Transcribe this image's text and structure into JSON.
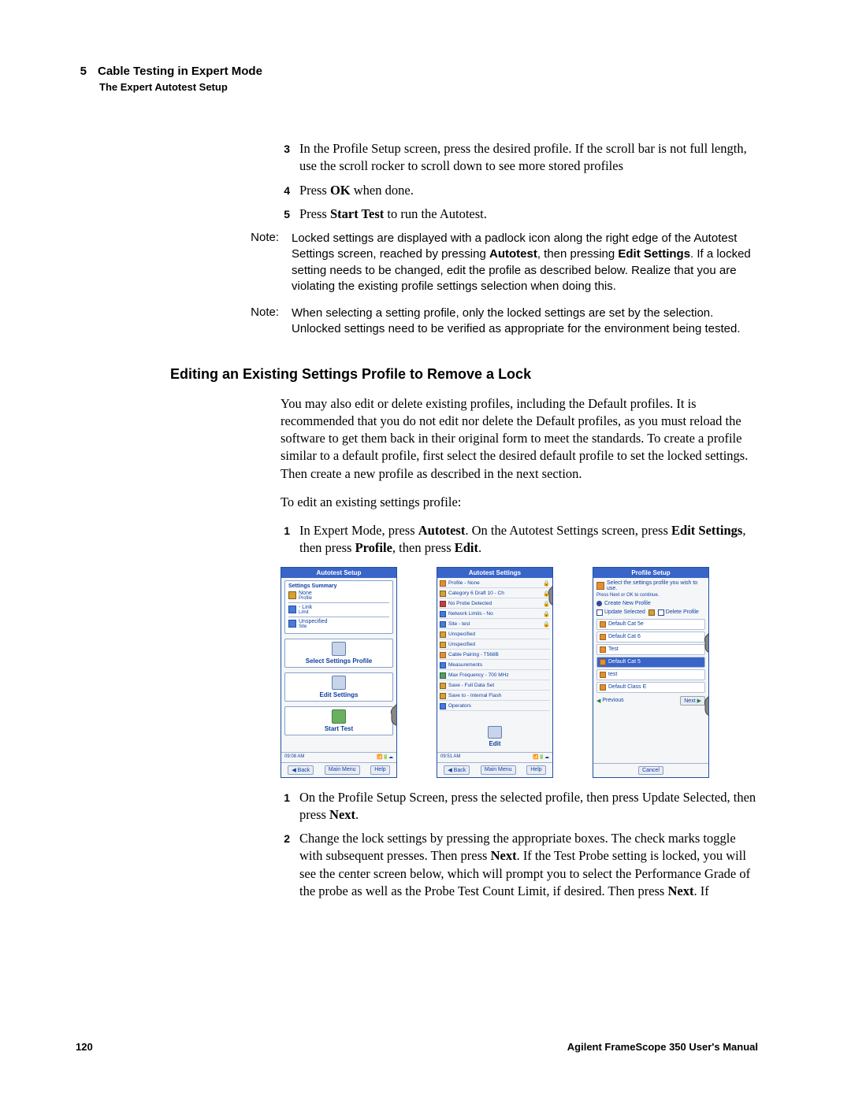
{
  "header": {
    "chapter_number": "5",
    "chapter_title": "Cable Testing in Expert Mode",
    "subsection": "The Expert Autotest Setup"
  },
  "steps_top": {
    "items": [
      {
        "n": "3",
        "text": "In the Profile Setup screen, press the desired profile. If the scroll bar is not full length, use the scroll rocker to scroll down to see more stored profiles"
      },
      {
        "n": "4",
        "text_pre": "Press ",
        "bold": "OK",
        "text_post": " when done."
      },
      {
        "n": "5",
        "text_pre": "Press ",
        "bold": "Start Test",
        "text_post": " to run the Autotest."
      }
    ]
  },
  "notes": [
    {
      "label": "Note:",
      "pre": "Locked settings are displayed with a padlock icon along the right edge of the Autotest Settings screen, reached by pressing ",
      "b1": "Autotest",
      "mid": ", then pressing ",
      "b2": "Edit Settings",
      "post": ". If a locked setting needs to be changed, edit the profile as described below. Realize that you are violating the existing profile settings selection when doing this."
    },
    {
      "label": "Note:",
      "text": "When selecting a setting profile, only the locked settings are set by the selection. Unlocked settings need to be verified as appropriate for the environment being tested."
    }
  ],
  "section_heading": "Editing an Existing Settings Profile to Remove a Lock",
  "intro_para": "You may also edit or delete existing profiles, including the Default profiles. It is recommended that you do not edit nor delete the Default profiles, as you must reload the software to get them back in their original form to meet the standards. To create a profile similar to a default profile, first select the desired default profile to set the locked settings. Then create a new profile as described in the next section.",
  "edit_intro": "To edit an existing settings profile:",
  "step1": {
    "n": "1",
    "pre": "In Expert Mode, press ",
    "b1": "Autotest",
    "mid1": ". On the Autotest Settings screen, press ",
    "b2": "Edit Settings",
    "mid2": ", then press ",
    "b3": "Profile",
    "mid3": ", then press ",
    "b4": "Edit",
    "post": "."
  },
  "screenshots": {
    "shot1": {
      "title": "Autotest Setup",
      "summary_label": "Settings Summary",
      "rows": [
        {
          "label": "None",
          "sub": "Profile"
        },
        {
          "label": "- Link",
          "sub": "Limit"
        },
        {
          "label": "Unspecified",
          "sub": "Site"
        }
      ],
      "btn1": "Select Settings Profile",
      "btn2": "Edit Settings",
      "btn3": "Start Test",
      "time": "09:08 AM",
      "bot": [
        "Back",
        "Main Menu",
        "Help"
      ]
    },
    "shot2": {
      "title": "Autotest Settings",
      "rows": [
        "Profile - None",
        "Category 6 Draft 10 - Ch",
        "No Probe Detected",
        "Network Limits - No",
        "Site - test",
        "Unspecified",
        "Unspecified",
        "Cable Pairing - T568B",
        "Measurements",
        "Max Frequency - 700 MHz",
        "Save - Full Data Set",
        "Save to - Internal Flash",
        "Operators"
      ],
      "editbtn": "Edit",
      "time": "09:51 AM",
      "bot": [
        "Back",
        "Main Menu",
        "Help"
      ]
    },
    "shot3": {
      "title": "Profile Setup",
      "instr": "Select the settings profile you wish to use.",
      "instr2": "Press Next or OK to continue.",
      "create": "Create New Profile",
      "update": "Update Selected",
      "delete": "Delete Profile",
      "items": [
        "Default Cat 5e",
        "Default Cat 6",
        "Test",
        "Default Cat 5",
        "test",
        "Default Class E"
      ],
      "prev": "Previous",
      "next": "Next",
      "cancel": "Cancel"
    }
  },
  "steps_bottom": {
    "items": [
      {
        "n": "1",
        "pre": "On the Profile Setup Screen, press the selected profile, then press Update Selected, then press ",
        "b1": "Next",
        "post": "."
      },
      {
        "n": "2",
        "pre": "Change the lock settings by pressing the appropriate boxes. The check marks toggle with subsequent presses. Then press ",
        "b1": "Next",
        "mid": ". If the Test Probe setting is locked, you will see the center screen below, which will prompt you to select the Performance Grade of the probe as well as the Probe Test Count Limit, if desired. Then press ",
        "b2": "Next",
        "post": ". If"
      }
    ]
  },
  "footer": {
    "page": "120",
    "doc": "Agilent FrameScope 350 User's Manual"
  }
}
